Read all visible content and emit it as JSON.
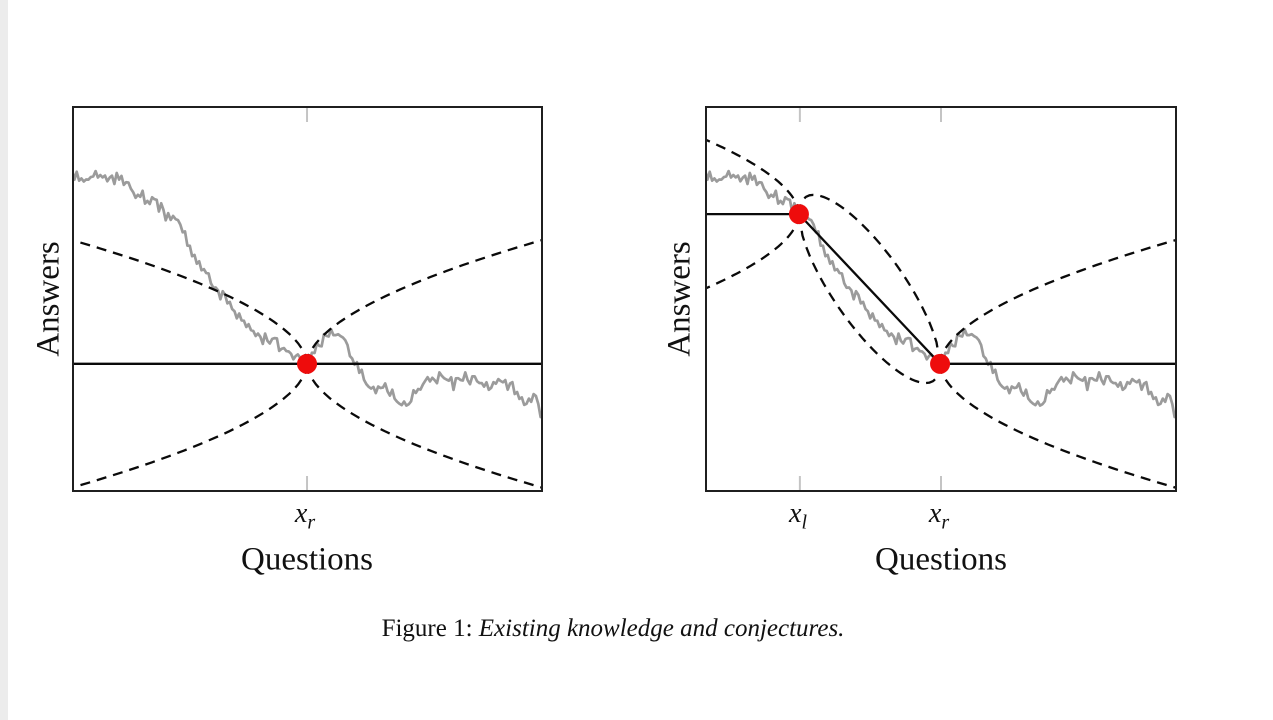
{
  "caption": {
    "prefix": "Figure 1: ",
    "text": "Existing knowledge and conjectures."
  },
  "colors": {
    "background": "#ffffff",
    "left_strip": "#ececec",
    "frame": "#1f1f1f",
    "tick": "#c4c4c4",
    "solid_line": "#0a0a0a",
    "dashed_line": "#0a0a0a",
    "walk": "#9b9b9b",
    "marker": "#ee0c0c"
  },
  "chart_data": [
    {
      "panel": "left",
      "type": "line",
      "title": "",
      "xlabel": "Questions",
      "ylabel": "Answers",
      "grid": false,
      "legend": "none",
      "x_axis": {
        "ticks": [
          {
            "base": "x",
            "sub": "r",
            "u": 0.499
          }
        ]
      },
      "known_points": [
        {
          "u": 0.499,
          "v": 0.668
        }
      ],
      "solid_line": [
        [
          0,
          0.668
        ],
        [
          1,
          0.668
        ]
      ],
      "cones": [
        {
          "u": 0.499,
          "v": 0.668,
          "dir": -1
        },
        {
          "u": 0.499,
          "v": 0.668,
          "dir": 1
        }
      ],
      "bridges": [],
      "envelope": {
        "amplitude_v": 0.321,
        "exponent": 0.55,
        "bridge_amplitude_v": 0.295
      },
      "walk": [
        [
          0,
          0.171
        ],
        [
          0.025,
          0.195
        ],
        [
          0.05,
          0.18
        ],
        [
          0.075,
          0.195
        ],
        [
          0.1,
          0.185
        ],
        [
          0.125,
          0.215
        ],
        [
          0.15,
          0.235
        ],
        [
          0.175,
          0.25
        ],
        [
          0.199,
          0.28
        ],
        [
          0.22,
          0.3
        ],
        [
          0.245,
          0.355
        ],
        [
          0.27,
          0.415
        ],
        [
          0.295,
          0.455
        ],
        [
          0.32,
          0.49
        ],
        [
          0.35,
          0.545
        ],
        [
          0.38,
          0.578
        ],
        [
          0.41,
          0.6
        ],
        [
          0.44,
          0.625
        ],
        [
          0.47,
          0.648
        ],
        [
          0.498,
          0.668
        ],
        [
          0.515,
          0.635
        ],
        [
          0.54,
          0.59
        ],
        [
          0.56,
          0.585
        ],
        [
          0.585,
          0.615
        ],
        [
          0.61,
          0.69
        ],
        [
          0.635,
          0.73
        ],
        [
          0.66,
          0.72
        ],
        [
          0.685,
          0.755
        ],
        [
          0.71,
          0.78
        ],
        [
          0.735,
          0.735
        ],
        [
          0.76,
          0.705
        ],
        [
          0.785,
          0.7
        ],
        [
          0.81,
          0.72
        ],
        [
          0.835,
          0.7
        ],
        [
          0.86,
          0.71
        ],
        [
          0.885,
          0.735
        ],
        [
          0.91,
          0.715
        ],
        [
          0.935,
          0.725
        ],
        [
          0.96,
          0.765
        ],
        [
          0.98,
          0.755
        ],
        [
          1,
          0.805
        ]
      ]
    },
    {
      "panel": "right",
      "type": "line",
      "title": "",
      "xlabel": "Questions",
      "ylabel": "Answers",
      "grid": false,
      "legend": "none",
      "x_axis": {
        "ticks": [
          {
            "base": "x",
            "sub": "l",
            "u": 0.201
          },
          {
            "base": "x",
            "sub": "r",
            "u": 0.5
          }
        ]
      },
      "known_points": [
        {
          "u": 0.199,
          "v": 0.28
        },
        {
          "u": 0.498,
          "v": 0.668
        }
      ],
      "solid_line": [
        [
          0,
          0.28
        ],
        [
          0.199,
          0.28
        ],
        [
          0.498,
          0.668
        ],
        [
          1,
          0.668
        ]
      ],
      "cones": [
        {
          "u": 0.199,
          "v": 0.28,
          "dir": -1
        },
        {
          "u": 0.498,
          "v": 0.668,
          "dir": 1
        }
      ],
      "bridges": [
        {
          "from": {
            "u": 0.199,
            "v": 0.28
          },
          "to": {
            "u": 0.498,
            "v": 0.668
          }
        }
      ],
      "envelope": {
        "amplitude_v": 0.321,
        "exponent": 0.55,
        "bridge_amplitude_v": 0.295
      },
      "walk": [
        [
          0,
          0.171
        ],
        [
          0.025,
          0.195
        ],
        [
          0.05,
          0.18
        ],
        [
          0.075,
          0.195
        ],
        [
          0.1,
          0.185
        ],
        [
          0.125,
          0.215
        ],
        [
          0.15,
          0.235
        ],
        [
          0.175,
          0.25
        ],
        [
          0.199,
          0.28
        ],
        [
          0.22,
          0.3
        ],
        [
          0.245,
          0.355
        ],
        [
          0.27,
          0.415
        ],
        [
          0.295,
          0.455
        ],
        [
          0.32,
          0.49
        ],
        [
          0.35,
          0.545
        ],
        [
          0.38,
          0.578
        ],
        [
          0.41,
          0.6
        ],
        [
          0.44,
          0.625
        ],
        [
          0.47,
          0.648
        ],
        [
          0.498,
          0.668
        ],
        [
          0.515,
          0.635
        ],
        [
          0.54,
          0.59
        ],
        [
          0.56,
          0.585
        ],
        [
          0.585,
          0.615
        ],
        [
          0.61,
          0.69
        ],
        [
          0.635,
          0.73
        ],
        [
          0.66,
          0.72
        ],
        [
          0.685,
          0.755
        ],
        [
          0.71,
          0.78
        ],
        [
          0.735,
          0.735
        ],
        [
          0.76,
          0.705
        ],
        [
          0.785,
          0.7
        ],
        [
          0.81,
          0.72
        ],
        [
          0.835,
          0.7
        ],
        [
          0.86,
          0.71
        ],
        [
          0.885,
          0.735
        ],
        [
          0.91,
          0.715
        ],
        [
          0.935,
          0.725
        ],
        [
          0.96,
          0.765
        ],
        [
          0.98,
          0.755
        ],
        [
          1,
          0.805
        ]
      ]
    }
  ]
}
